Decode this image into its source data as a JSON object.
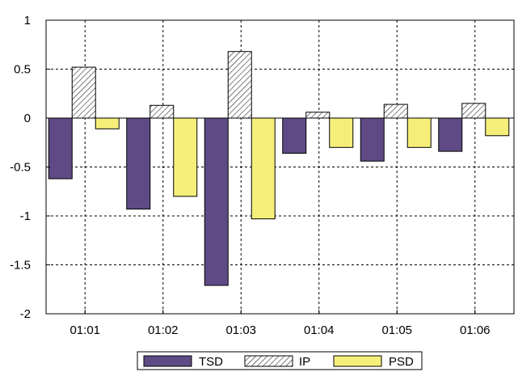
{
  "chart_data": {
    "type": "bar",
    "categories": [
      "01:01",
      "01:02",
      "01:03",
      "01:04",
      "01:05",
      "01:06"
    ],
    "series": [
      {
        "name": "TSD",
        "values": [
          -0.62,
          -0.93,
          -1.71,
          -0.36,
          -0.44,
          -0.34
        ],
        "color": "#5f4a85",
        "pattern": "solid"
      },
      {
        "name": "IP",
        "values": [
          0.52,
          0.13,
          0.68,
          0.06,
          0.14,
          0.15
        ],
        "color": "#ffffff",
        "pattern": "diagonal-hatch"
      },
      {
        "name": "PSD",
        "values": [
          -0.11,
          -0.8,
          -1.03,
          -0.3,
          -0.3,
          -0.18
        ],
        "color": "#f5ef7a",
        "pattern": "solid"
      }
    ],
    "yticks": [
      1,
      0.5,
      0,
      -0.5,
      -1,
      -1.5,
      -2
    ],
    "yticklabels": [
      "1",
      "0.5",
      "0",
      "-0.5",
      "-1",
      "-1.5",
      "-2"
    ],
    "ylim": [
      -2,
      1
    ],
    "grid": true,
    "legend_position": "bottom-center"
  }
}
